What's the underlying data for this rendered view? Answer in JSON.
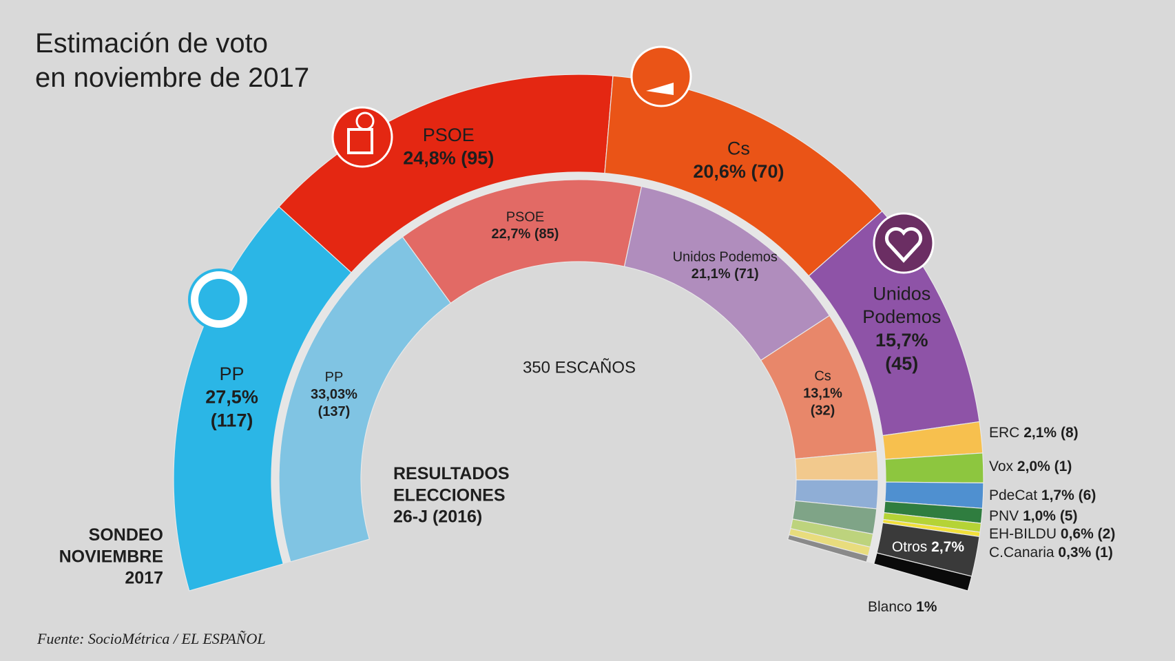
{
  "chart_data": {
    "type": "hemicycle",
    "title": "Estimación de voto\nen noviembre de 2017",
    "center_label": "350 ESCAÑOS",
    "source": "Fuente: SocioMétrica / EL ESPAÑOL",
    "series": [
      {
        "name": "SONDEO\nNOVIEMBRE\n2017",
        "categories": [
          "PP",
          "PSOE",
          "Cs",
          "Unidos\nPodemos",
          "ERC",
          "Vox",
          "PdeCat",
          "PNV",
          "EH-BILDU",
          "C.Canaria",
          "Otros",
          "Blanco"
        ],
        "values": [
          27.5,
          24.8,
          20.6,
          15.7,
          2.1,
          2.0,
          1.7,
          1.0,
          0.6,
          0.3,
          2.7,
          1
        ],
        "value_labels": [
          "27,5%",
          "24,8%",
          "20,6%",
          "15,7%",
          "2,1%",
          "2,0%",
          "1,7%",
          "1,0%",
          "0,6%",
          "0,3%",
          "2,7%",
          "1%"
        ],
        "seats": [
          117,
          95,
          70,
          45,
          8,
          1,
          6,
          5,
          2,
          1,
          null,
          null
        ],
        "seat_labels": [
          "(117)",
          "(95)",
          "(70)",
          "(45)",
          "(8)",
          "(1)",
          "(6)",
          "(5)",
          "(2)",
          "(1)",
          null,
          null
        ],
        "colors": [
          "#2bb6e6",
          "#e42712",
          "#ea5417",
          "#8e53a7",
          "#f7c04e",
          "#8dc63f",
          "#4f90d0",
          "#2f7d3f",
          "#b5d336",
          "#f2e03a",
          "#3a3a3a",
          "#0a0a0a"
        ]
      },
      {
        "name": "RESULTADOS\nELECCIONES\n26-J (2016)",
        "categories": [
          "PP",
          "PSOE",
          "Unidos Podemos",
          "Cs",
          null,
          null,
          null,
          null,
          null,
          null
        ],
        "values": [
          33.03,
          22.7,
          21.1,
          13.1,
          2.6,
          2.6,
          2.3,
          1.2,
          0.8,
          0.6
        ],
        "value_labels": [
          "33,03%",
          "22,7%",
          "21,1%",
          "13,1%",
          null,
          null,
          null,
          null,
          null,
          null
        ],
        "seats": [
          137,
          85,
          71,
          32,
          null,
          null,
          null,
          null,
          null,
          null
        ],
        "seat_labels": [
          "(137)",
          "(85)",
          "(71)",
          "(32)",
          null,
          null,
          null,
          null,
          null,
          null
        ],
        "colors": [
          "#80c4e3",
          "#e26a65",
          "#b08dbd",
          "#e8876a",
          "#f2c98d",
          "#8faed6",
          "#7fa487",
          "#bdd37d",
          "#e8dc7d",
          "#8a8a8a"
        ]
      }
    ]
  }
}
